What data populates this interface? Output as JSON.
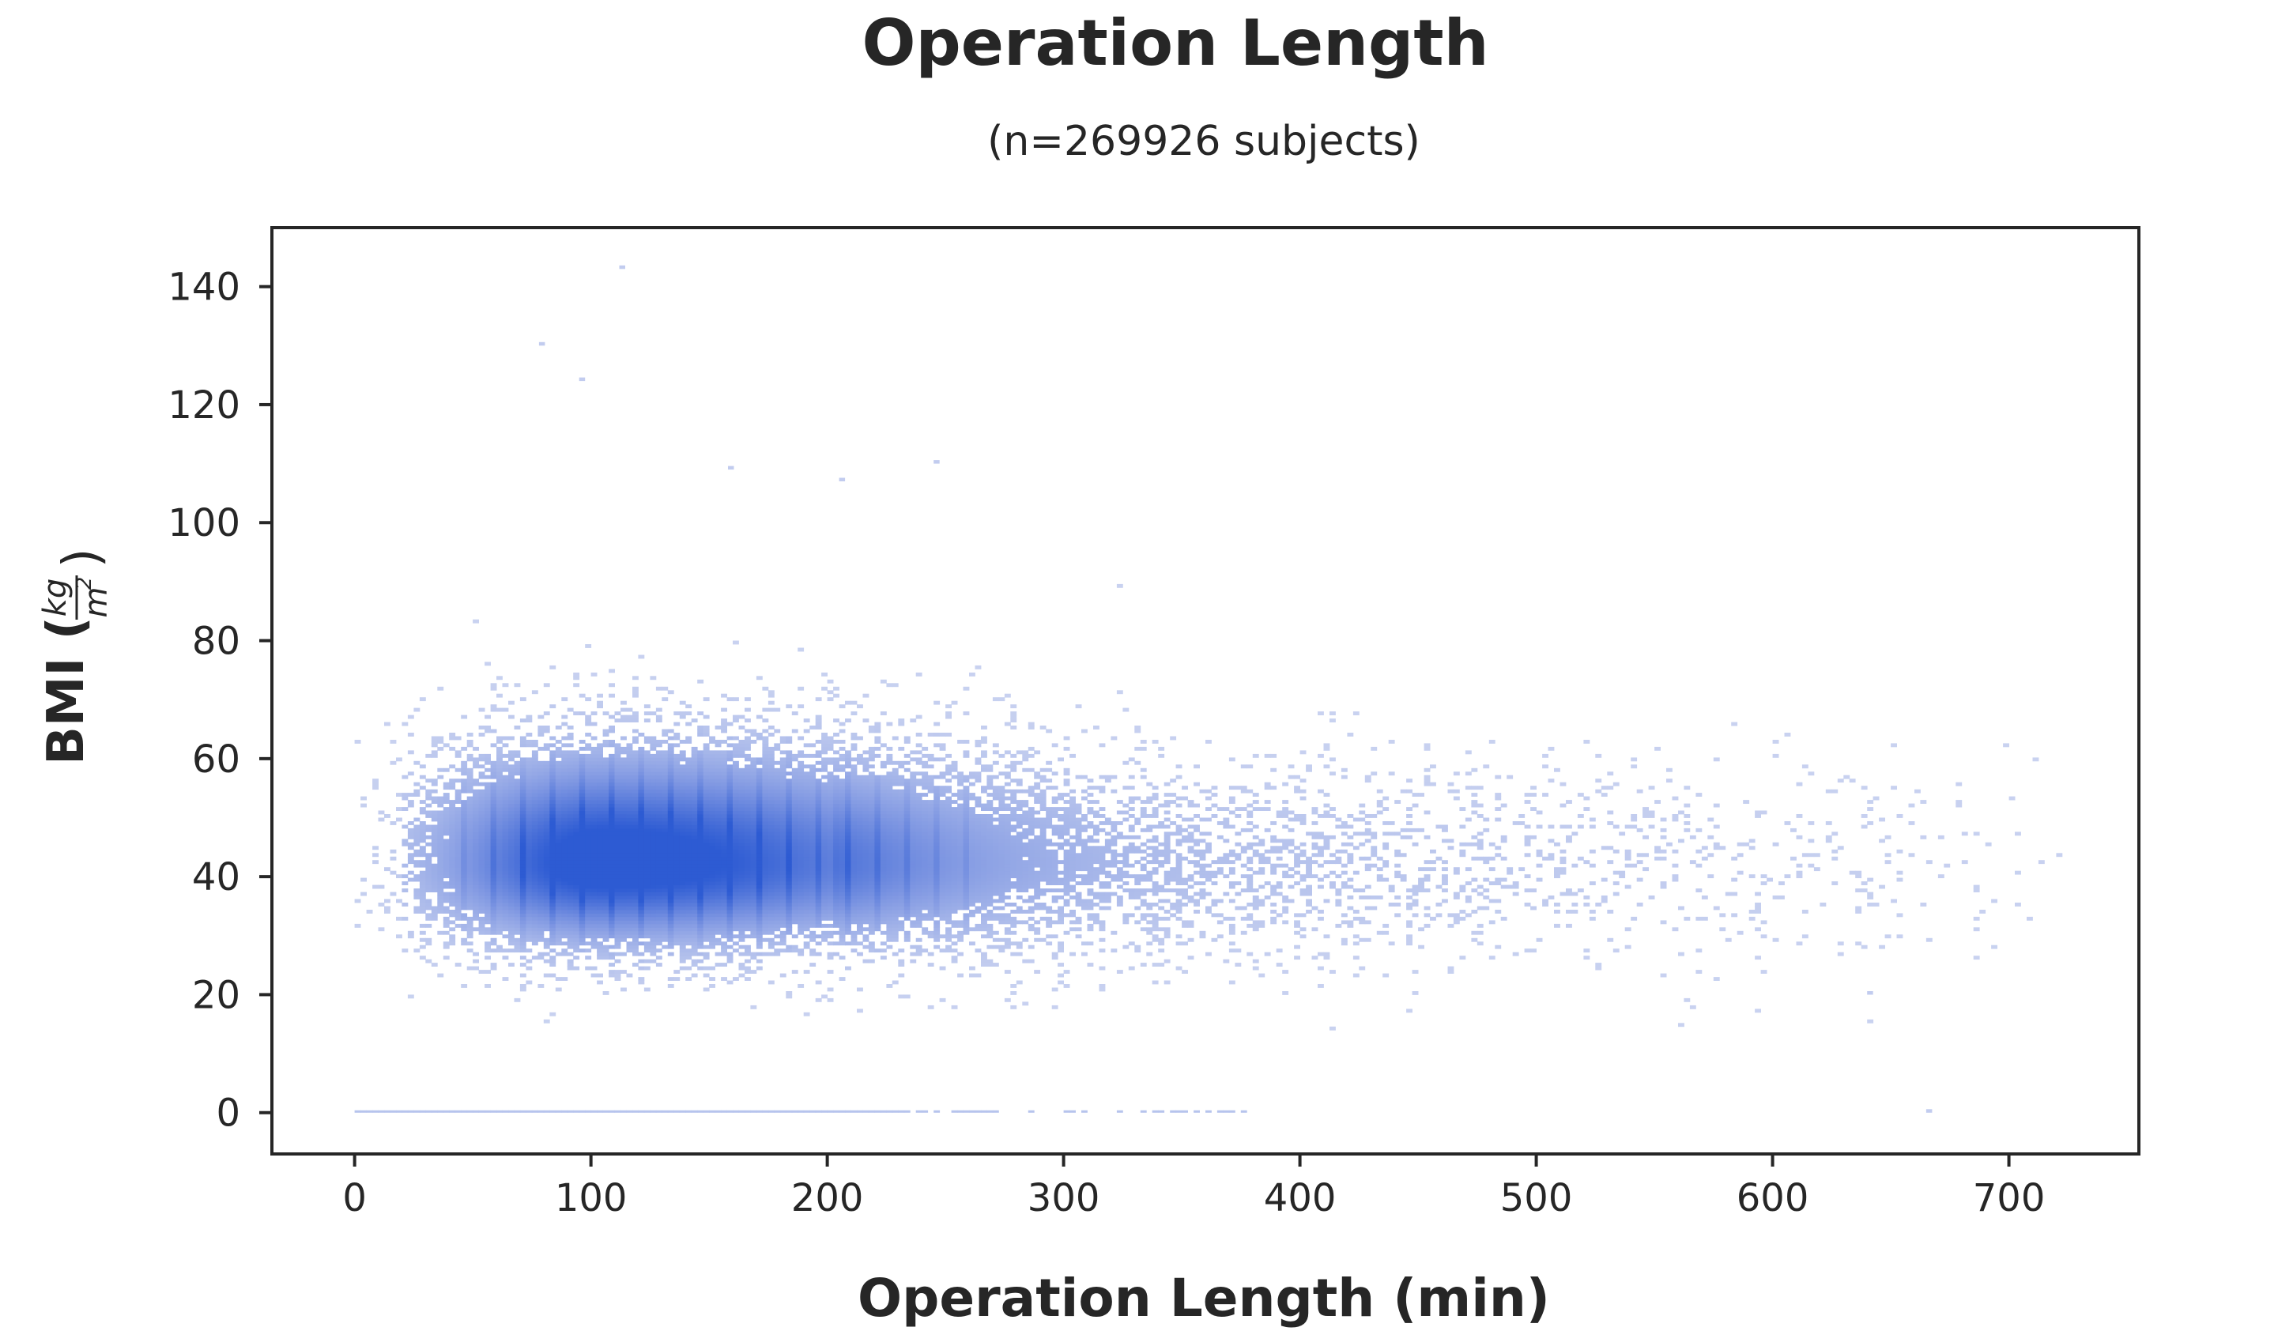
{
  "chart_data": {
    "type": "heatmap",
    "title": "Operation Length",
    "subtitle": "(n=269926 subjects)",
    "xlabel": "Operation Length (min)",
    "ylabel": {
      "prefix": "BMI (",
      "unit_num": "kg",
      "unit_den": "m",
      "unit_den_exp": "2",
      "suffix": ")"
    },
    "xlim": [
      -35,
      755
    ],
    "ylim": [
      -7,
      150
    ],
    "x_ticks": [
      0,
      100,
      200,
      300,
      400,
      500,
      600,
      700
    ],
    "y_ticks": [
      0,
      20,
      40,
      60,
      80,
      100,
      120,
      140
    ],
    "grid": false,
    "colors": {
      "low": "#c9d2f0",
      "mid": "#7f97e2",
      "high": "#2d5bd3",
      "axis": "#262626",
      "text": "#262626"
    },
    "density": {
      "peak": {
        "x": 105,
        "y": 42
      },
      "core_x_range": [
        20,
        310
      ],
      "core_y_range": [
        25,
        65
      ],
      "sparse_x_range": [
        310,
        720
      ],
      "sparse_y_center": 42,
      "zero_bmi_row_x_range": [
        0,
        380
      ],
      "outliers": [
        {
          "x": 112,
          "y": 143
        },
        {
          "x": 78,
          "y": 130
        },
        {
          "x": 95,
          "y": 124
        },
        {
          "x": 245,
          "y": 110
        },
        {
          "x": 158,
          "y": 109
        },
        {
          "x": 205,
          "y": 107
        },
        {
          "x": 640,
          "y": 20
        },
        {
          "x": 665,
          "y": 0
        }
      ]
    }
  }
}
